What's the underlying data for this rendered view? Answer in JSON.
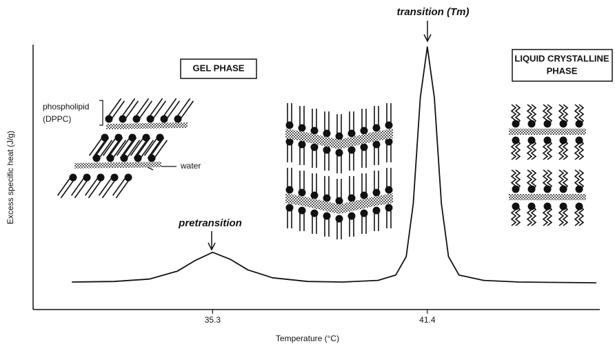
{
  "chart_data": {
    "type": "line",
    "x_label": "Temperature (°C)",
    "y_label": "Excess specific heat (J/g)",
    "x": [
      31.3,
      32.5,
      33.5,
      34.3,
      34.8,
      35.3,
      35.8,
      36.3,
      37.0,
      38.0,
      39.0,
      40.0,
      40.5,
      40.8,
      41.0,
      41.2,
      41.4,
      41.6,
      41.8,
      42.0,
      42.3,
      43.0,
      44.0,
      46.2
    ],
    "values": [
      10.4,
      10.6,
      11.5,
      14.5,
      18.5,
      21.6,
      19,
      15,
      12,
      10.6,
      10.4,
      11,
      13,
      20,
      40,
      80,
      99.2,
      80,
      40,
      20,
      13,
      11,
      10.4,
      10.1
    ],
    "color": "#111111",
    "xlim": [
      30.2,
      46.3
    ],
    "xticks": [
      35.3,
      41.4
    ],
    "ylim": [
      0,
      100
    ],
    "annotations": {
      "transition": "transition (Tm)",
      "pretransition": "pretransition",
      "gel_phase": "GEL PHASE",
      "liquid_phase": [
        "LIQUID CRYSTALLINE",
        "PHASE"
      ],
      "phospholipid": [
        "phospholipid",
        "(DPPC)"
      ],
      "water": "water"
    }
  }
}
